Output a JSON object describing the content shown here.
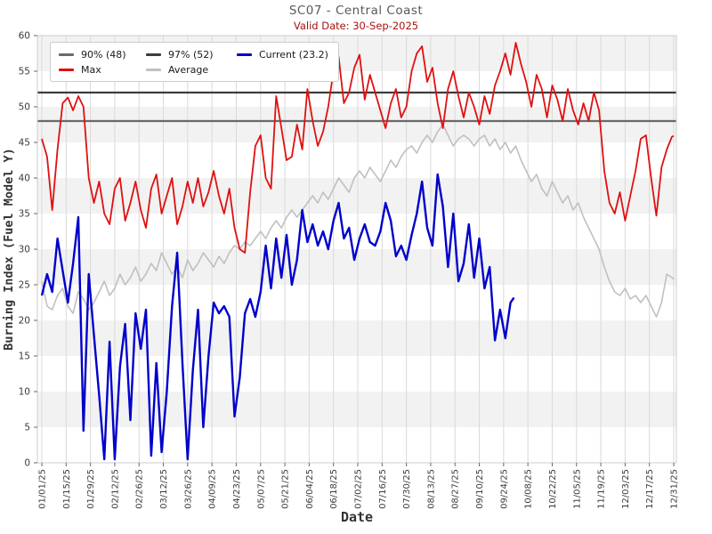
{
  "chart_data": {
    "type": "line",
    "title": "SC07 - Central Coast",
    "subtitle": "Valid Date: 30-Sep-2025",
    "xlabel": "Date",
    "ylabel": "Burning Index (Fuel Model Y)",
    "ylim": [
      0,
      60
    ],
    "y_ticks": [
      0,
      5,
      10,
      15,
      20,
      25,
      30,
      35,
      40,
      45,
      50,
      55,
      60
    ],
    "x_tick_days": [
      0,
      14,
      28,
      42,
      56,
      70,
      84,
      98,
      112,
      126,
      140,
      154,
      168,
      182,
      196,
      210,
      224,
      238,
      252,
      266,
      280,
      294,
      308,
      322,
      336,
      350,
      364
    ],
    "x_tick_labels": [
      "01/01/25",
      "01/15/25",
      "01/29/25",
      "02/12/25",
      "02/26/25",
      "03/12/25",
      "03/26/25",
      "04/09/25",
      "04/23/25",
      "05/07/25",
      "05/21/25",
      "06/04/25",
      "06/18/25",
      "07/02/25",
      "07/16/25",
      "07/30/25",
      "08/13/25",
      "08/27/25",
      "09/10/25",
      "09/24/25",
      "10/08/25",
      "10/22/25",
      "11/05/25",
      "11/19/25",
      "12/03/25",
      "12/17/25",
      "12/31/25"
    ],
    "grid": {
      "band_fill": "#f2f2f2",
      "band_step": 5,
      "vline_color": "#d9d9d9",
      "frame_color": "#cccccc"
    },
    "reference_lines": [
      {
        "name": "percentile-90",
        "label": "90% (48)",
        "value": 48,
        "color": "#6a6a6a"
      },
      {
        "name": "percentile-97",
        "label": "97% (52)",
        "value": 52,
        "color": "#3d3d3d"
      }
    ],
    "legend": {
      "position": "upper-left",
      "items": [
        {
          "label": "90% (48)",
          "color": "#6a6a6a"
        },
        {
          "label": "97% (52)",
          "color": "#3d3d3d"
        },
        {
          "label": "Current (23.2)",
          "color": "#0000cc"
        },
        {
          "label": "Max",
          "color": "#e01010"
        },
        {
          "label": "Average",
          "color": "#c0c0c0"
        }
      ]
    },
    "sampling_note": "values sampled every 3 days starting 01/01/25",
    "series": [
      {
        "name": "Max",
        "color": "#e01010",
        "width": 1.8,
        "day_step": 3,
        "last_day": 364,
        "values": [
          45.5,
          43,
          35.5,
          44,
          50.5,
          51.3,
          49.5,
          51.5,
          50,
          40,
          36.5,
          39.5,
          35,
          33.5,
          38.5,
          40,
          34,
          36.5,
          39.5,
          35.5,
          33,
          38.5,
          40.5,
          35,
          37.5,
          40,
          33.5,
          36,
          39.5,
          36.5,
          40,
          36,
          38,
          41,
          37.5,
          35,
          38.5,
          33,
          30,
          29.5,
          38,
          44.5,
          46,
          40,
          38.5,
          51.5,
          47,
          42.5,
          43,
          47.5,
          44,
          52.5,
          48,
          44.5,
          46.5,
          50,
          55,
          57,
          50.5,
          52,
          55.5,
          57.3,
          51,
          54.5,
          52,
          49.5,
          47,
          50.5,
          52.5,
          48.5,
          50,
          55,
          57.5,
          58.5,
          53.5,
          55.5,
          50.5,
          47,
          52.5,
          55,
          51.5,
          48.5,
          52,
          50,
          47.5,
          51.5,
          49,
          53,
          55,
          57.5,
          54.5,
          59,
          56,
          53.5,
          50,
          54.5,
          52.5,
          48.5,
          53,
          51,
          48,
          52.5,
          49.5,
          47.5,
          50.5,
          48,
          52,
          49.5,
          41,
          36.5,
          35,
          38,
          34,
          37.5,
          41,
          45.5,
          46,
          40,
          34.7,
          41.5,
          44,
          45.8,
          45.9
        ]
      },
      {
        "name": "Average",
        "color": "#c0c0c0",
        "width": 1.6,
        "day_step": 3,
        "last_day": 364,
        "values": [
          25.5,
          22,
          21.5,
          23.5,
          24.5,
          22,
          21,
          24,
          23,
          21.5,
          22.5,
          24,
          25.5,
          23.5,
          24.5,
          26.5,
          25,
          26,
          27.5,
          25.5,
          26.5,
          28,
          27,
          29.5,
          28,
          26.5,
          27.5,
          26,
          28.5,
          27,
          28,
          29.5,
          28.5,
          27.5,
          29,
          28,
          29.5,
          30.5,
          30,
          31,
          30.5,
          31.5,
          32.5,
          31.5,
          33,
          34,
          33,
          34.5,
          35.5,
          34.5,
          35.5,
          36.5,
          37.5,
          36.5,
          38,
          37,
          38.5,
          40,
          39,
          38,
          40,
          41,
          40,
          41.5,
          40.5,
          39.5,
          41,
          42.5,
          41.5,
          43,
          44,
          44.5,
          43.5,
          45,
          46,
          45,
          46.5,
          47.5,
          46,
          44.5,
          45.5,
          46,
          45.5,
          44.5,
          45.5,
          46,
          44.5,
          45.5,
          44,
          45,
          43.5,
          44.5,
          42.5,
          41,
          39.5,
          40.5,
          38.5,
          37.5,
          39.5,
          38,
          36.5,
          37.5,
          35.5,
          36.5,
          34.5,
          33,
          31.5,
          30,
          27.5,
          25.5,
          24,
          23.5,
          24.5,
          23,
          23.5,
          22.5,
          23.5,
          22,
          20.5,
          22.5,
          26.5,
          26,
          25.8
        ]
      },
      {
        "name": "Current",
        "color": "#0000cc",
        "width": 2.4,
        "day_step": 3,
        "last_day": 272,
        "values": [
          23.5,
          26.5,
          24,
          31.5,
          27,
          22.5,
          28,
          34.5,
          4.5,
          26.5,
          18,
          9.5,
          0.5,
          17,
          0.5,
          13.5,
          19.5,
          6,
          21,
          16,
          21.5,
          1,
          14,
          1.5,
          10,
          22,
          29.5,
          14,
          0.5,
          13,
          21.5,
          5,
          15,
          22.5,
          21,
          22,
          20.5,
          6.5,
          12,
          21,
          23,
          20.5,
          24,
          30.5,
          24.5,
          31.5,
          26,
          32,
          25,
          28.5,
          35.5,
          31,
          33.5,
          30.5,
          32.5,
          30,
          34,
          36.5,
          31.5,
          33,
          28.5,
          31.5,
          33.5,
          31,
          30.5,
          32.5,
          36.5,
          34,
          29,
          30.5,
          28.5,
          32,
          35,
          39.5,
          33,
          30.5,
          40.5,
          36,
          27.5,
          35,
          25.5,
          28,
          33.5,
          26,
          31.5,
          24.5,
          27.5,
          17.2,
          21.5,
          17.5,
          22.5,
          23.2
        ]
      }
    ]
  }
}
